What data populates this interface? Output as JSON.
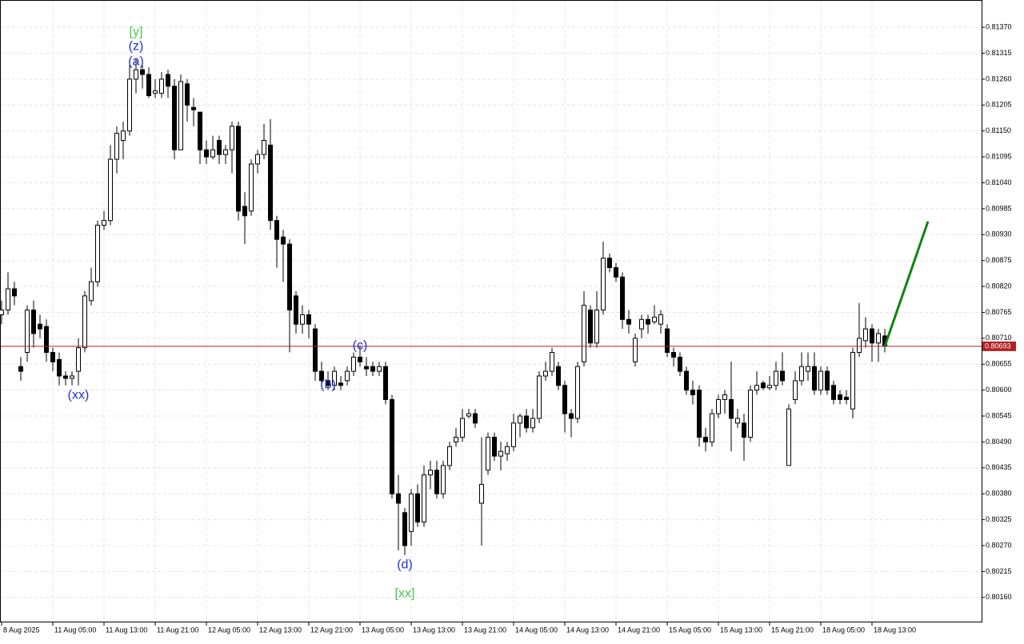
{
  "chart_data": {
    "type": "candlestick",
    "ylim": [
      0.80107,
      0.81428
    ],
    "yticks": [
      {
        "value": 0.8137,
        "label": "0.81370"
      },
      {
        "value": 0.81315,
        "label": "0.81315"
      },
      {
        "value": 0.8126,
        "label": "0.81260"
      },
      {
        "value": 0.81205,
        "label": "0.81205"
      },
      {
        "value": 0.8115,
        "label": "0.81150"
      },
      {
        "value": 0.81095,
        "label": "0.81095"
      },
      {
        "value": 0.8104,
        "label": "0.81040"
      },
      {
        "value": 0.80985,
        "label": "0.80985"
      },
      {
        "value": 0.8093,
        "label": "0.80930"
      },
      {
        "value": 0.80875,
        "label": "0.80875"
      },
      {
        "value": 0.8082,
        "label": "0.80820"
      },
      {
        "value": 0.80765,
        "label": "0.80765"
      },
      {
        "value": 0.8071,
        "label": "0.80710"
      },
      {
        "value": 0.80655,
        "label": "0.80655"
      },
      {
        "value": 0.806,
        "label": "0.80600"
      },
      {
        "value": 0.80545,
        "label": "0.80545"
      },
      {
        "value": 0.8049,
        "label": "0.80490"
      },
      {
        "value": 0.80435,
        "label": "0.80435"
      },
      {
        "value": 0.8038,
        "label": "0.80380"
      },
      {
        "value": 0.80325,
        "label": "0.80325"
      },
      {
        "value": 0.8027,
        "label": "0.80270"
      },
      {
        "value": 0.80215,
        "label": "0.80215"
      },
      {
        "value": 0.8016,
        "label": "0.80160"
      }
    ],
    "grid": true,
    "bull_color": "#ffffff",
    "bear_color": "#000000",
    "outline_color": "#000000",
    "categories": [
      "8 Aug 2025",
      null,
      null,
      null,
      null,
      null,
      null,
      null,
      "11 Aug 05:00",
      null,
      null,
      null,
      null,
      null,
      null,
      null,
      "11 Aug 13:00",
      null,
      null,
      null,
      null,
      null,
      null,
      null,
      "11 Aug 21:00",
      null,
      null,
      null,
      null,
      null,
      null,
      null,
      "12 Aug 05:00",
      null,
      null,
      null,
      null,
      null,
      null,
      null,
      "12 Aug 13:00",
      null,
      null,
      null,
      null,
      null,
      null,
      null,
      "12 Aug 21:00",
      null,
      null,
      null,
      null,
      null,
      null,
      null,
      "13 Aug 05:00",
      null,
      null,
      null,
      null,
      null,
      null,
      null,
      "13 Aug 13:00",
      null,
      null,
      null,
      null,
      null,
      null,
      null,
      "13 Aug 21:00",
      null,
      null,
      null,
      null,
      null,
      null,
      null,
      "14 Aug 05:00",
      null,
      null,
      null,
      null,
      null,
      null,
      null,
      "14 Aug 13:00",
      null,
      null,
      null,
      null,
      null,
      null,
      null,
      "14 Aug 21:00",
      null,
      null,
      null,
      null,
      null,
      null,
      null,
      "15 Aug 05:00",
      null,
      null,
      null,
      null,
      null,
      null,
      null,
      "15 Aug 13:00",
      null,
      null,
      null,
      null,
      null,
      null,
      null,
      "15 Aug 21:00",
      null,
      null,
      null,
      null,
      null,
      null,
      null,
      "18 Aug 05:00",
      null,
      null,
      null,
      null,
      null,
      null,
      null,
      "18 Aug 13:00",
      null,
      null
    ],
    "ohlc": [
      [
        0.8076,
        0.8079,
        0.8074,
        0.8077
      ],
      [
        0.8077,
        0.8085,
        0.8076,
        0.80815
      ],
      [
        0.80815,
        0.8083,
        0.8078,
        0.808
      ],
      [
        0.8065,
        0.8067,
        0.8062,
        0.8064
      ],
      [
        0.8068,
        0.8078,
        0.8066,
        0.8077
      ],
      [
        0.8077,
        0.8079,
        0.8069,
        0.8072
      ],
      [
        0.8074,
        0.8076,
        0.8071,
        0.8073
      ],
      [
        0.80735,
        0.8075,
        0.8066,
        0.8068
      ],
      [
        0.8068,
        0.8069,
        0.8064,
        0.8066
      ],
      [
        0.80665,
        0.8068,
        0.8061,
        0.8063
      ],
      [
        0.8063,
        0.8064,
        0.8061,
        0.80625
      ],
      [
        0.80625,
        0.8064,
        0.8061,
        0.8063
      ],
      [
        0.8064,
        0.8071,
        0.8061,
        0.8069
      ],
      [
        0.8069,
        0.8081,
        0.8068,
        0.808
      ],
      [
        0.8079,
        0.8086,
        0.8078,
        0.8083
      ],
      [
        0.8083,
        0.8096,
        0.8082,
        0.8095
      ],
      [
        0.8095,
        0.8098,
        0.8094,
        0.8096
      ],
      [
        0.8096,
        0.8112,
        0.8095,
        0.8109
      ],
      [
        0.8109,
        0.8116,
        0.8106,
        0.81145
      ],
      [
        0.8113,
        0.8117,
        0.8109,
        0.8115
      ],
      [
        0.8115,
        0.8129,
        0.8114,
        0.8126
      ],
      [
        0.8126,
        0.81305,
        0.8123,
        0.8128
      ],
      [
        0.8128,
        0.8129,
        0.8124,
        0.8127
      ],
      [
        0.8127,
        0.81285,
        0.8122,
        0.81225
      ],
      [
        0.8123,
        0.8126,
        0.8122,
        0.81235
      ],
      [
        0.8123,
        0.81275,
        0.8122,
        0.8126
      ],
      [
        0.8127,
        0.8128,
        0.8122,
        0.81245
      ],
      [
        0.81245,
        0.8126,
        0.8109,
        0.8111
      ],
      [
        0.8111,
        0.8127,
        0.8111,
        0.81255
      ],
      [
        0.8125,
        0.8126,
        0.8117,
        0.81205
      ],
      [
        0.812,
        0.8122,
        0.8116,
        0.81195
      ],
      [
        0.8119,
        0.8119,
        0.8108,
        0.8111
      ],
      [
        0.8111,
        0.8113,
        0.8108,
        0.81095
      ],
      [
        0.81095,
        0.8114,
        0.8109,
        0.8111
      ],
      [
        0.8113,
        0.8114,
        0.8108,
        0.811
      ],
      [
        0.811,
        0.8112,
        0.8108,
        0.8111
      ],
      [
        0.8111,
        0.8117,
        0.8106,
        0.8116
      ],
      [
        0.8116,
        0.8117,
        0.8096,
        0.8098
      ],
      [
        0.8099,
        0.8102,
        0.8091,
        0.8097
      ],
      [
        0.8098,
        0.8109,
        0.8097,
        0.8108
      ],
      [
        0.8108,
        0.8111,
        0.8106,
        0.811
      ],
      [
        0.811,
        0.81165,
        0.8109,
        0.8113
      ],
      [
        0.8112,
        0.81175,
        0.8094,
        0.8096
      ],
      [
        0.8096,
        0.8097,
        0.8086,
        0.8092
      ],
      [
        0.80925,
        0.8094,
        0.8083,
        0.8091
      ],
      [
        0.8091,
        0.8092,
        0.8068,
        0.8077
      ],
      [
        0.808,
        0.8081,
        0.8072,
        0.8074
      ],
      [
        0.8074,
        0.8078,
        0.8072,
        0.8076
      ],
      [
        0.8076,
        0.8077,
        0.8071,
        0.8074
      ],
      [
        0.8073,
        0.8074,
        0.8062,
        0.8064
      ],
      [
        0.8064,
        0.8066,
        0.8061,
        0.8062
      ],
      [
        0.8062,
        0.8064,
        0.806,
        0.8061
      ],
      [
        0.8061,
        0.8065,
        0.806,
        0.8064
      ],
      [
        0.80615,
        0.8063,
        0.806,
        0.8061
      ],
      [
        0.8062,
        0.8065,
        0.8061,
        0.8064
      ],
      [
        0.8064,
        0.8068,
        0.8063,
        0.8067
      ],
      [
        0.8067,
        0.80695,
        0.8065,
        0.8066
      ],
      [
        0.8065,
        0.8067,
        0.8063,
        0.80645
      ],
      [
        0.8065,
        0.8066,
        0.8063,
        0.8064
      ],
      [
        0.8064,
        0.8066,
        0.8063,
        0.8065
      ],
      [
        0.8065,
        0.8066,
        0.8057,
        0.8058
      ],
      [
        0.8058,
        0.8059,
        0.8037,
        0.8038
      ],
      [
        0.8038,
        0.8042,
        0.8026,
        0.8036
      ],
      [
        0.8034,
        0.8035,
        0.8025,
        0.8027
      ],
      [
        0.803,
        0.8039,
        0.8027,
        0.8038
      ],
      [
        0.8038,
        0.804,
        0.8031,
        0.8032
      ],
      [
        0.8032,
        0.8044,
        0.8031,
        0.8042
      ],
      [
        0.8042,
        0.8045,
        0.8039,
        0.8043
      ],
      [
        0.8043,
        0.8045,
        0.8037,
        0.8038
      ],
      [
        0.8038,
        0.8045,
        0.8037,
        0.8044
      ],
      [
        0.8044,
        0.8049,
        0.8043,
        0.8048
      ],
      [
        0.8049,
        0.8052,
        0.8048,
        0.805
      ],
      [
        0.805,
        0.8056,
        0.8049,
        0.8054
      ],
      [
        0.80545,
        0.8056,
        0.8054,
        0.8055
      ],
      [
        0.8055,
        0.8056,
        0.8052,
        0.8053
      ],
      [
        0.8036,
        0.805,
        0.8027,
        0.804
      ],
      [
        0.8043,
        0.8051,
        0.8042,
        0.805
      ],
      [
        0.805,
        0.8051,
        0.8045,
        0.8046
      ],
      [
        0.8046,
        0.8049,
        0.8043,
        0.8047
      ],
      [
        0.80465,
        0.8049,
        0.8045,
        0.8048
      ],
      [
        0.8048,
        0.8055,
        0.8047,
        0.8053
      ],
      [
        0.8053,
        0.8055,
        0.805,
        0.80545
      ],
      [
        0.80545,
        0.8056,
        0.8051,
        0.8052
      ],
      [
        0.8052,
        0.8056,
        0.8051,
        0.8054
      ],
      [
        0.8054,
        0.8064,
        0.8053,
        0.8063
      ],
      [
        0.8063,
        0.8066,
        0.8062,
        0.8064
      ],
      [
        0.8064,
        0.8069,
        0.8063,
        0.8068
      ],
      [
        0.8065,
        0.8066,
        0.806,
        0.8061
      ],
      [
        0.8061,
        0.8062,
        0.8051,
        0.8055
      ],
      [
        0.8055,
        0.8056,
        0.805,
        0.8054
      ],
      [
        0.8054,
        0.8066,
        0.8053,
        0.8065
      ],
      [
        0.8066,
        0.8081,
        0.8065,
        0.8078
      ],
      [
        0.8077,
        0.8078,
        0.8069,
        0.807
      ],
      [
        0.807,
        0.8081,
        0.8069,
        0.8077
      ],
      [
        0.8077,
        0.80915,
        0.8076,
        0.8088
      ],
      [
        0.8088,
        0.8089,
        0.8085,
        0.8086
      ],
      [
        0.8086,
        0.8087,
        0.8083,
        0.8084
      ],
      [
        0.8084,
        0.8085,
        0.8073,
        0.8075
      ],
      [
        0.8075,
        0.8077,
        0.8072,
        0.8074
      ],
      [
        0.8066,
        0.8072,
        0.8065,
        0.8071
      ],
      [
        0.8073,
        0.8076,
        0.8071,
        0.8075
      ],
      [
        0.8075,
        0.8076,
        0.8072,
        0.8074
      ],
      [
        0.80745,
        0.8078,
        0.8074,
        0.80755
      ],
      [
        0.8074,
        0.8077,
        0.8072,
        0.8076
      ],
      [
        0.8073,
        0.8074,
        0.8067,
        0.8068
      ],
      [
        0.8068,
        0.8069,
        0.8065,
        0.8067
      ],
      [
        0.8067,
        0.8068,
        0.8063,
        0.8064
      ],
      [
        0.8064,
        0.8065,
        0.8059,
        0.806
      ],
      [
        0.806,
        0.8062,
        0.8057,
        0.8059
      ],
      [
        0.806,
        0.8061,
        0.8048,
        0.805
      ],
      [
        0.805,
        0.8052,
        0.8047,
        0.8049
      ],
      [
        0.8049,
        0.8056,
        0.8048,
        0.8055
      ],
      [
        0.8055,
        0.8059,
        0.8054,
        0.8058
      ],
      [
        0.8058,
        0.806,
        0.8055,
        0.8059
      ],
      [
        0.8058,
        0.8066,
        0.8047,
        0.8054
      ],
      [
        0.8053,
        0.8056,
        0.8052,
        0.8054
      ],
      [
        0.8053,
        0.8055,
        0.8045,
        0.805
      ],
      [
        0.805,
        0.8061,
        0.8049,
        0.806
      ],
      [
        0.806,
        0.8064,
        0.8059,
        0.8061
      ],
      [
        0.80615,
        0.8062,
        0.806,
        0.80605
      ],
      [
        0.80605,
        0.8063,
        0.806,
        0.8061
      ],
      [
        0.8061,
        0.8066,
        0.806,
        0.8064
      ],
      [
        0.8064,
        0.8068,
        0.8061,
        0.8062
      ],
      [
        0.8044,
        0.8057,
        0.8044,
        0.8056
      ],
      [
        0.8058,
        0.8064,
        0.8057,
        0.8062
      ],
      [
        0.8062,
        0.8068,
        0.8061,
        0.8065
      ],
      [
        0.8064,
        0.8068,
        0.8062,
        0.8065
      ],
      [
        0.8065,
        0.8068,
        0.8059,
        0.806
      ],
      [
        0.806,
        0.8065,
        0.8059,
        0.8064
      ],
      [
        0.8064,
        0.8065,
        0.8059,
        0.806
      ],
      [
        0.8061,
        0.8062,
        0.8057,
        0.8058
      ],
      [
        0.8059,
        0.806,
        0.8057,
        0.8058
      ],
      [
        0.80585,
        0.806,
        0.8057,
        0.8058
      ],
      [
        0.8056,
        0.8069,
        0.8054,
        0.8068
      ],
      [
        0.8068,
        0.80785,
        0.8067,
        0.8071
      ],
      [
        0.80705,
        0.80755,
        0.8069,
        0.8073
      ],
      [
        0.8073,
        0.8074,
        0.8066,
        0.807
      ],
      [
        0.807,
        0.8073,
        0.8066,
        0.8072
      ],
      [
        0.80715,
        0.8073,
        0.8068,
        0.80693
      ]
    ],
    "price_line": {
      "value": 0.80693,
      "color": "#b22222"
    },
    "projection": {
      "x": [
        138,
        144.75
      ],
      "y": [
        0.80693,
        0.80958
      ],
      "color": "#128212"
    },
    "wave_labels": [
      {
        "text": "[y]",
        "index": 21,
        "price": 0.8136,
        "color": "#4fc44f"
      },
      {
        "text": "(z)",
        "index": 21,
        "price": 0.81329,
        "color": "#1f2fd6"
      },
      {
        "text": "(a)",
        "index": 21,
        "price": 0.81297,
        "color": "#1f2fd6"
      },
      {
        "text": "(xx)",
        "index": 12,
        "price": 0.80589,
        "color": "#1f2fd6"
      },
      {
        "text": "(b)",
        "index": 51,
        "price": 0.80611,
        "color": "#1f2fd6"
      },
      {
        "text": "(c)",
        "index": 56,
        "price": 0.80694,
        "color": "#1f2fd6"
      },
      {
        "text": "(d)",
        "index": 63,
        "price": 0.80229,
        "color": "#1f2fd6"
      },
      {
        "text": "[xx]",
        "index": 63,
        "price": 0.80168,
        "color": "#4fc44f"
      }
    ]
  }
}
